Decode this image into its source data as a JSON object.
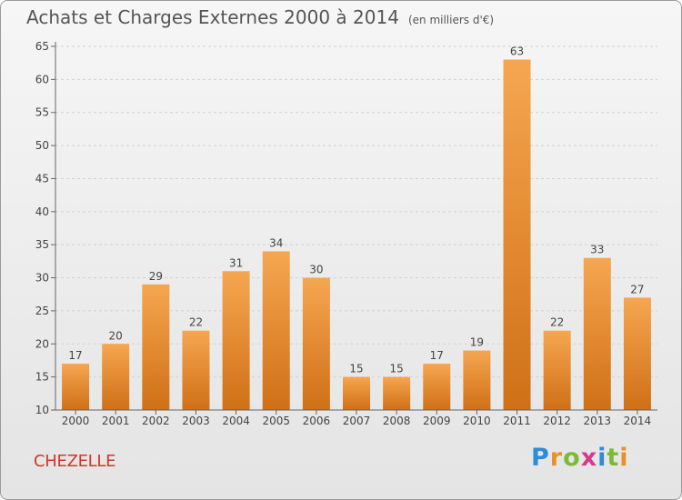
{
  "title": "Achats et Charges Externes 2000 à 2014",
  "subtitle": "(en milliers d'€)",
  "commune": "CHEZELLE",
  "logo": {
    "text": "Proxiti",
    "letters": [
      "P",
      "r",
      "o",
      "x",
      "i",
      "t",
      "i"
    ],
    "colors": [
      "#2e8bd8",
      "#e8912a",
      "#7cba35",
      "#d63a8d",
      "#2e8bd8",
      "#7cba35",
      "#e8912a"
    ]
  },
  "colors": {
    "bar_light": "#f6a651",
    "bar_dark": "#cf7016",
    "commune": "#d1362c"
  },
  "chart_data": {
    "type": "bar",
    "categories": [
      "2000",
      "2001",
      "2002",
      "2003",
      "2004",
      "2005",
      "2006",
      "2007",
      "2008",
      "2009",
      "2010",
      "2011",
      "2012",
      "2013",
      "2014"
    ],
    "values": [
      17,
      20,
      29,
      22,
      31,
      34,
      30,
      15,
      15,
      17,
      19,
      63,
      22,
      33,
      27
    ],
    "ylim": [
      10,
      65
    ],
    "yticks": [
      10,
      15,
      20,
      25,
      30,
      35,
      40,
      45,
      50,
      55,
      60,
      65
    ],
    "grid": true,
    "legend": "none",
    "xlabel": "",
    "ylabel": ""
  }
}
